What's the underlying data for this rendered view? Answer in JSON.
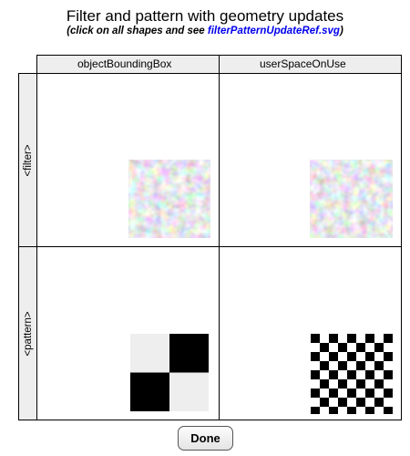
{
  "header": {
    "title": "Filter and pattern with geometry updates",
    "subtitle_before": "(click on all shapes and see ",
    "subtitle_link": "filterPatternUpdateRef.svg",
    "subtitle_after": ")"
  },
  "table": {
    "columns": [
      "objectBoundingBox",
      "userSpaceOnUse"
    ],
    "rows": [
      "<filter>",
      "<pattern>"
    ]
  },
  "colors": {
    "header_bg": "#eeeeee",
    "link": "#0000ee",
    "pattern_light": "#eeeeee",
    "pattern_dark": "#000000"
  },
  "actions": {
    "done_label": "Done"
  }
}
